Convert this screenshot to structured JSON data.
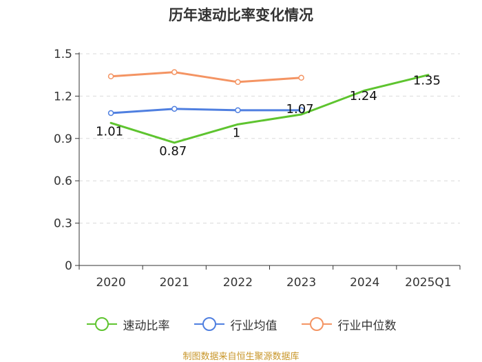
{
  "chart_data": {
    "type": "line",
    "title": "历年速动比率变化情况",
    "categories": [
      "2020",
      "2021",
      "2022",
      "2023",
      "2024",
      "2025Q1"
    ],
    "ylim": [
      0,
      1.5
    ],
    "yticks": [
      0,
      0.3,
      0.6,
      0.9,
      1.2,
      1.5
    ],
    "ytick_labels": [
      "0",
      "0.3",
      "0.6",
      "0.9",
      "1.2",
      "1.5"
    ],
    "grid": true,
    "legend_position": "bottom",
    "series": [
      {
        "name": "速动比率",
        "color": "#5ec42f",
        "values": [
          1.01,
          0.87,
          1.0,
          1.07,
          1.24,
          1.35
        ],
        "data_labels": [
          "1.01",
          "0.87",
          "1",
          "1.07",
          "1.24",
          "1.35"
        ],
        "markers": false
      },
      {
        "name": "行业均值",
        "color": "#4f7fe0",
        "values": [
          1.08,
          1.11,
          1.1,
          1.1,
          null,
          null
        ],
        "markers": true
      },
      {
        "name": "行业中位数",
        "color": "#f49463",
        "values": [
          1.34,
          1.37,
          1.3,
          1.33,
          null,
          null
        ],
        "markers": true
      }
    ]
  },
  "source": "制图数据来自恒生聚源数据库"
}
